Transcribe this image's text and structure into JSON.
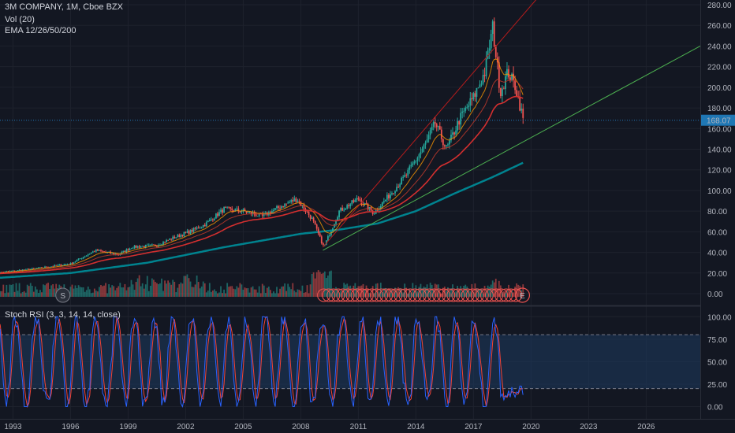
{
  "legend": {
    "symbol_line": "3M COMPANY, 1M, Cboe BZX",
    "volume": "Vol (20)",
    "ema": "EMA 12/26/50/200",
    "stoch": "Stoch RSI (3, 3, 14, 14, close)"
  },
  "price_scale": {
    "ticks": [
      "280.00",
      "260.00",
      "240.00",
      "220.00",
      "200.00",
      "180.00",
      "160.00",
      "140.00",
      "120.00",
      "100.00",
      "80.00",
      "60.00",
      "40.00",
      "20.00",
      "0.00"
    ],
    "last_price_label": "168.07",
    "last_price": 168.07
  },
  "stoch_scale": {
    "ticks": [
      "100.00",
      "75.00",
      "50.00",
      "25.00",
      "0.00"
    ],
    "band_upper": 80,
    "band_lower": 20
  },
  "time_axis": {
    "labels": [
      "1993",
      "1996",
      "1999",
      "2002",
      "2005",
      "2008",
      "2011",
      "2014",
      "2017",
      "2020",
      "2023",
      "2026"
    ]
  },
  "event_markers": {
    "split": "S",
    "earnings": "E"
  },
  "colors": {
    "background": "#131722",
    "grid": "#1e222d",
    "up": "#26a69a",
    "down": "#ef5350",
    "ema_fast": "#ff9800",
    "ema_mid": "#c0392b",
    "ema_50": "#d32f2f",
    "ema_200": "#00838f",
    "trend_red": "#b71c1c",
    "trend_green": "#4caf50",
    "stoch_k": "#2962ff",
    "stoch_d": "#f44336",
    "band_fill": "#1e3a5f",
    "last_price": "#1f77b4"
  },
  "chart_data": {
    "type": "candlestick",
    "interval": "1M",
    "x_range": [
      1992.0,
      2028.5
    ],
    "ylim": [
      0,
      280
    ],
    "price_anchors": [
      [
        1992.0,
        20
      ],
      [
        1994.0,
        24
      ],
      [
        1996.0,
        29
      ],
      [
        1997.3,
        42
      ],
      [
        1998.5,
        38
      ],
      [
        1999.2,
        45
      ],
      [
        2000.5,
        47
      ],
      [
        2001.2,
        53
      ],
      [
        2002.2,
        60
      ],
      [
        2003.0,
        67
      ],
      [
        2004.0,
        82
      ],
      [
        2005.0,
        80
      ],
      [
        2006.0,
        75
      ],
      [
        2007.0,
        85
      ],
      [
        2007.8,
        92
      ],
      [
        2008.6,
        72
      ],
      [
        2009.2,
        45
      ],
      [
        2010.0,
        80
      ],
      [
        2011.0,
        92
      ],
      [
        2011.8,
        78
      ],
      [
        2012.5,
        93
      ],
      [
        2013.5,
        115
      ],
      [
        2014.5,
        145
      ],
      [
        2015.0,
        165
      ],
      [
        2015.6,
        140
      ],
      [
        2016.3,
        170
      ],
      [
        2017.0,
        190
      ],
      [
        2017.6,
        215
      ],
      [
        2018.0,
        258
      ],
      [
        2018.4,
        195
      ],
      [
        2018.8,
        215
      ],
      [
        2019.2,
        200
      ],
      [
        2019.6,
        168
      ]
    ],
    "ema_200_anchors": [
      [
        1992.0,
        15
      ],
      [
        1996.0,
        20
      ],
      [
        2000.0,
        30
      ],
      [
        2004.0,
        45
      ],
      [
        2008.0,
        58
      ],
      [
        2010.0,
        62
      ],
      [
        2012.0,
        68
      ],
      [
        2014.0,
        80
      ],
      [
        2016.0,
        97
      ],
      [
        2018.0,
        113
      ],
      [
        2019.6,
        127
      ]
    ],
    "volume_max_label": "20.00",
    "stoch_rsi_range": [
      0,
      100
    ]
  }
}
